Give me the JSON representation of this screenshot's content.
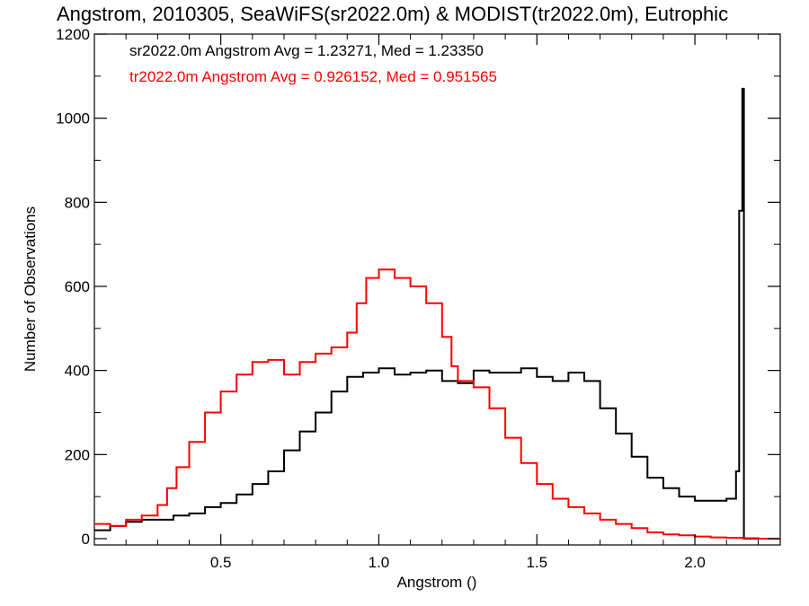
{
  "chart_data": {
    "type": "line",
    "title": "Angstrom, 2010305, SeaWiFS(sr2022.0m) & MODIST(tr2022.0m), Eutrophic",
    "xlabel": "Angstrom ()",
    "ylabel": "Number of Observations",
    "xlim": [
      0.1,
      2.27
    ],
    "ylim": [
      -15,
      1200
    ],
    "xticks": [
      0.5,
      1.0,
      1.5,
      2.0
    ],
    "xtick_labels": [
      "0.5",
      "1.0",
      "1.5",
      "2.0"
    ],
    "yticks": [
      0,
      200,
      400,
      600,
      800,
      1000,
      1200
    ],
    "ytick_labels": [
      "0",
      "200",
      "400",
      "600",
      "800",
      "1000",
      "1200"
    ],
    "grid": false,
    "step": true,
    "annotations": [
      {
        "text": "sr2022.0m Angstrom Avg = 1.23271, Med = 1.23350",
        "color": "#000000"
      },
      {
        "text": "tr2022.0m Angstrom Avg = 0.926152, Med = 0.951565",
        "color": "#ff0000"
      }
    ],
    "series": [
      {
        "color": "#000000",
        "x": [
          0.1,
          0.15,
          0.2,
          0.25,
          0.3,
          0.35,
          0.4,
          0.45,
          0.5,
          0.55,
          0.6,
          0.65,
          0.7,
          0.75,
          0.8,
          0.85,
          0.9,
          0.95,
          1.0,
          1.05,
          1.1,
          1.15,
          1.2,
          1.25,
          1.3,
          1.35,
          1.4,
          1.45,
          1.5,
          1.55,
          1.6,
          1.65,
          1.7,
          1.75,
          1.8,
          1.85,
          1.9,
          1.95,
          2.0,
          2.05,
          2.1,
          2.13,
          2.14,
          2.15,
          2.155,
          2.16,
          2.27
        ],
        "y": [
          20,
          30,
          40,
          45,
          45,
          55,
          60,
          75,
          85,
          105,
          130,
          160,
          210,
          255,
          300,
          350,
          385,
          395,
          405,
          390,
          395,
          400,
          375,
          370,
          400,
          395,
          395,
          405,
          385,
          375,
          395,
          375,
          310,
          250,
          195,
          145,
          120,
          100,
          90,
          90,
          95,
          160,
          780,
          1070,
          0,
          0,
          0
        ]
      },
      {
        "color": "#ff0000",
        "x": [
          0.1,
          0.15,
          0.2,
          0.25,
          0.3,
          0.33,
          0.36,
          0.4,
          0.45,
          0.5,
          0.55,
          0.6,
          0.65,
          0.7,
          0.75,
          0.8,
          0.85,
          0.9,
          0.93,
          0.96,
          1.0,
          1.05,
          1.1,
          1.15,
          1.2,
          1.23,
          1.25,
          1.3,
          1.35,
          1.4,
          1.45,
          1.5,
          1.55,
          1.6,
          1.65,
          1.7,
          1.75,
          1.8,
          1.85,
          1.9,
          1.95,
          2.0,
          2.05,
          2.1,
          2.15,
          2.2,
          2.27
        ],
        "y": [
          35,
          30,
          45,
          55,
          80,
          120,
          170,
          230,
          300,
          350,
          390,
          420,
          425,
          390,
          420,
          440,
          455,
          490,
          560,
          620,
          640,
          620,
          600,
          560,
          480,
          410,
          375,
          360,
          310,
          240,
          180,
          130,
          95,
          75,
          60,
          45,
          35,
          25,
          15,
          10,
          8,
          5,
          3,
          2,
          1,
          0,
          0
        ]
      }
    ]
  }
}
